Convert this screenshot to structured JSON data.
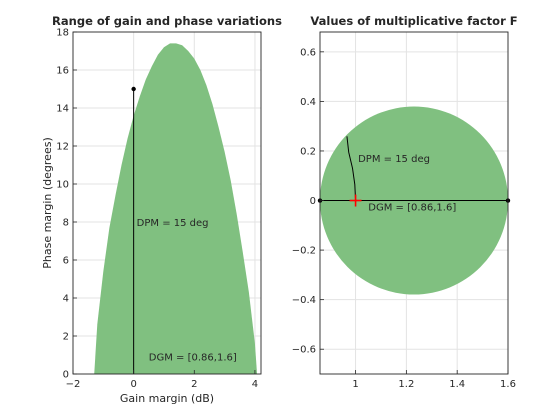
{
  "fill_color": "#80c080",
  "marker_color": "#ff0000",
  "chart_data": [
    {
      "type": "area",
      "title": "Range of gain and phase variations",
      "xlabel": "Gain margin (dB)",
      "ylabel": "Phase margin (degrees)",
      "xlim": [
        -2,
        4.2
      ],
      "ylim": [
        0,
        18
      ],
      "xticks": [
        -2,
        0,
        2,
        4
      ],
      "yticks": [
        0,
        2,
        4,
        6,
        8,
        10,
        12,
        14,
        16,
        18
      ],
      "grid": true,
      "region": {
        "name": "stable gain/phase region",
        "x": [
          -1.3,
          -1.2,
          -1.0,
          -0.8,
          -0.6,
          -0.4,
          -0.2,
          0.0,
          0.2,
          0.4,
          0.6,
          0.8,
          1.0,
          1.2,
          1.4,
          1.6,
          1.8,
          2.0,
          2.2,
          2.4,
          2.6,
          2.8,
          3.0,
          3.2,
          3.4,
          3.6,
          3.8,
          4.0,
          4.07
        ],
        "y": [
          0.0,
          2.6,
          5.4,
          7.7,
          9.4,
          11.0,
          12.4,
          13.6,
          14.6,
          15.5,
          16.2,
          16.8,
          17.2,
          17.4,
          17.4,
          17.3,
          17.0,
          16.6,
          16.0,
          15.2,
          14.2,
          13.0,
          11.7,
          10.2,
          8.4,
          6.4,
          4.3,
          1.6,
          0.0
        ]
      },
      "markers": [
        {
          "name": "DPM line",
          "x": [
            0,
            0
          ],
          "y": [
            0,
            15
          ]
        },
        {
          "name": "DPM point",
          "x": 0,
          "y": 15
        }
      ],
      "annotations": [
        {
          "text": "DPM = 15 deg",
          "x": 0.1,
          "y": 7.8
        },
        {
          "text": "DGM = [0.86,1.6]",
          "x": 0.5,
          "y": 0.7
        }
      ]
    },
    {
      "type": "area",
      "title": "Values of multiplicative factor F",
      "xlabel": "",
      "ylabel": "",
      "xlim": [
        0.86,
        1.6
      ],
      "ylim": [
        -0.7,
        0.68
      ],
      "xticks": [
        1,
        1.2,
        1.4,
        1.6
      ],
      "yticks": [
        -0.6,
        -0.4,
        -0.2,
        0,
        0.2,
        0.4,
        0.6
      ],
      "xtick_labels": [
        "1",
        "1.2",
        "1.4",
        "1.6"
      ],
      "ytick_labels": [
        "-0.6",
        "-0.4",
        "-0.2",
        "0",
        "0.2",
        "0.4",
        "0.6"
      ],
      "grid": true,
      "disk": {
        "center": [
          1.23,
          0
        ],
        "radius": 0.37
      },
      "markers": [
        {
          "name": "DGM segment",
          "x": [
            0.86,
            1.6
          ],
          "y": [
            0,
            0
          ]
        },
        {
          "name": "DPM arc",
          "x": [
            1.0,
            0.997,
            0.988,
            0.973,
            0.966
          ],
          "y": [
            0.0,
            0.065,
            0.13,
            0.195,
            0.259
          ]
        },
        {
          "name": "nominal point",
          "x": 1,
          "y": 0
        }
      ],
      "annotations": [
        {
          "text": "DPM = 15 deg",
          "x": 1.01,
          "y": 0.155
        },
        {
          "text": "DGM = [0.86,1.6]",
          "x": 1.05,
          "y": -0.04
        }
      ]
    }
  ]
}
